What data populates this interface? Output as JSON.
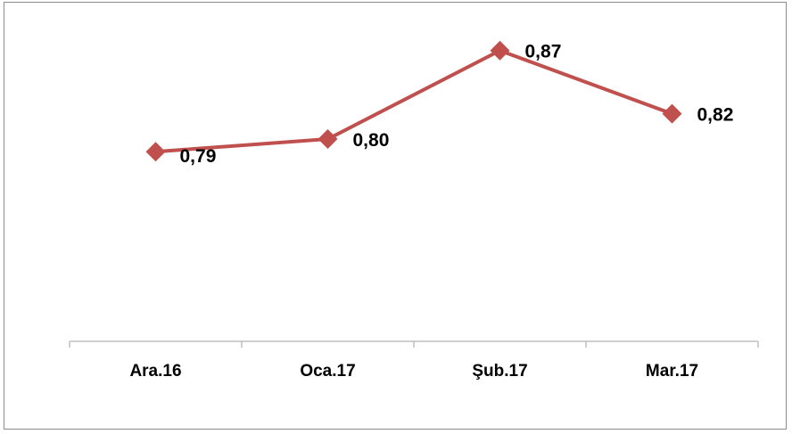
{
  "chart_data": {
    "type": "line",
    "categories": [
      "Ara.16",
      "Oca.17",
      "Şub.17",
      "Mar.17"
    ],
    "series": [
      {
        "values": [
          0.79,
          0.8,
          0.87,
          0.82
        ],
        "labels": [
          "0,79",
          "0,80",
          "0,87",
          "0,82"
        ],
        "color": "#c0504d",
        "marker": "diamond"
      }
    ],
    "title": "",
    "xlabel": "",
    "ylabel": "",
    "ylim": [
      0.64,
      0.91
    ],
    "grid": false,
    "legend": "none",
    "axis_color": "#bfbfbf"
  }
}
